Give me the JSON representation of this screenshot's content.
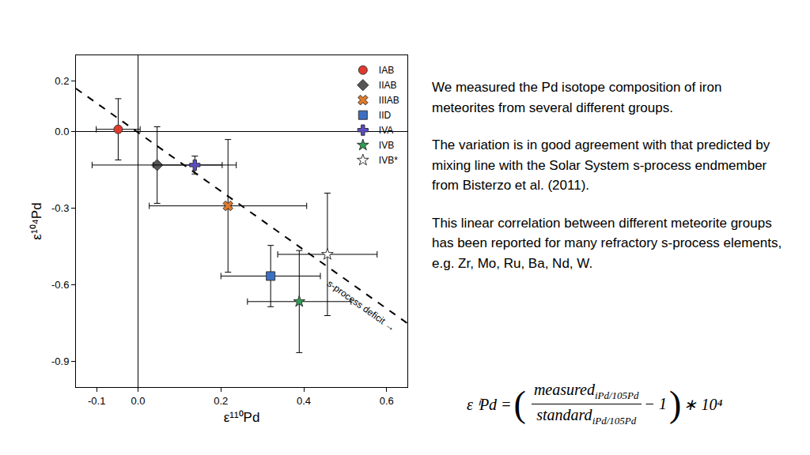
{
  "chart_data": {
    "type": "scatter",
    "xlabel": "ε¹¹⁰Pd",
    "ylabel": "ε¹⁰⁴Pd",
    "xlim": [
      -0.15,
      0.65
    ],
    "ylim": [
      -1.0,
      0.3
    ],
    "xticks": [
      -0.1,
      {
        "value": 0,
        "label": "0.0"
      },
      0.2,
      0.4,
      0.6
    ],
    "yticks": [
      -0.9,
      -0.6,
      -0.3,
      {
        "value": 0,
        "label": "0.0"
      },
      0.2
    ],
    "grid": false,
    "legend": "upper right",
    "series": [
      {
        "name": "IAB",
        "color": "#e03a2f",
        "marker": "circle",
        "x": [
          -0.048
        ],
        "y": [
          0.01
        ],
        "x_error": [
          0.053
        ],
        "y_error": [
          0.12
        ]
      },
      {
        "name": "IIAB",
        "color": "#555555",
        "marker": "diamond",
        "x": [
          0.046
        ],
        "y": [
          -0.13
        ],
        "x_error": [
          0.157
        ],
        "y_error": [
          0.15
        ]
      },
      {
        "name": "IIIAB",
        "color": "#e07b2c",
        "marker": "x",
        "x": [
          0.217
        ],
        "y": [
          -0.29
        ],
        "x_error": [
          0.19
        ],
        "y_error": [
          0.26
        ]
      },
      {
        "name": "IID",
        "color": "#3a6fc4",
        "marker": "square",
        "x": [
          0.32
        ],
        "y": [
          -0.565
        ],
        "x_error": [
          0.12
        ],
        "y_error": [
          0.12
        ]
      },
      {
        "name": "IVA",
        "color": "#5b4cc4",
        "marker": "cross",
        "x": [
          0.137
        ],
        "y": [
          -0.13
        ],
        "x_error": [
          0.1
        ],
        "y_error": [
          0.035
        ]
      },
      {
        "name": "IVB",
        "color": "#2e9e55",
        "marker": "star",
        "x": [
          0.389
        ],
        "y": [
          -0.665
        ],
        "x_error": [
          0.125
        ],
        "y_error": [
          0.2
        ]
      },
      {
        "name": "IVB*",
        "color": "#ffffff",
        "marker": "star",
        "x": [
          0.457
        ],
        "y": [
          -0.48
        ],
        "x_error": [
          0.12
        ],
        "y_error": [
          0.24
        ]
      }
    ],
    "mixing_line": {
      "x": [
        -0.15,
        0.65
      ],
      "y": [
        0.17,
        -0.75
      ],
      "line_style": "dashed"
    },
    "annotations": [
      {
        "text": "s-process deficit →"
      }
    ]
  },
  "text_panel": {
    "paragraphs": [
      "We measured the Pd isotope composition of iron meteorites from several different groups.",
      "The variation is in good agreement with that predicted by mixing line with the Solar System s-process endmember from Bisterzo et al. (2011).",
      "This linear correlation between different meteorite groups has been reported for many refractory s-process elements, e.g. Zr, Mo, Ru, Ba, Nd, W."
    ]
  },
  "formula": {
    "lhs": "ε ⁱPd =",
    "numerator": "measured",
    "numerator_sub": "iPd/105Pd",
    "denominator": "standard",
    "denominator_sub": "iPd/105Pd",
    "minus": "− 1",
    "factor": "∗ 10⁴"
  }
}
